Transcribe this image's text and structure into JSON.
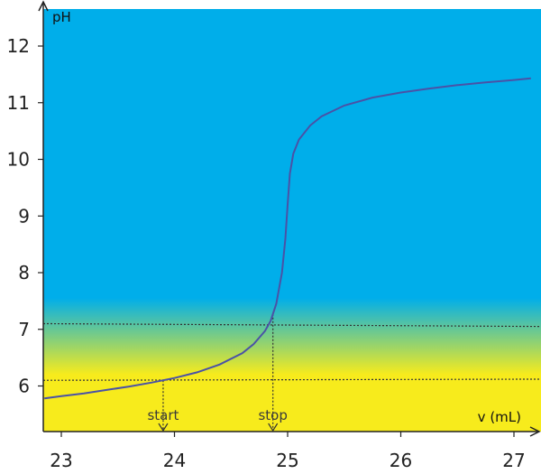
{
  "chart_data": {
    "type": "line",
    "xlabel": "v (mL)",
    "ylabel": "pH",
    "xlim": [
      22.85,
      27.25
    ],
    "ylim": [
      5.2,
      13.0
    ],
    "xticks": [
      23,
      24,
      25,
      26,
      27
    ],
    "yticks": [
      6,
      7,
      8,
      9,
      10,
      11,
      12
    ],
    "grid": false,
    "series": [
      {
        "x": [
          22.85,
          23.0,
          23.2,
          23.4,
          23.6,
          23.8,
          24.0,
          24.2,
          24.4,
          24.6,
          24.7,
          24.8,
          24.85,
          24.9,
          24.95,
          24.98,
          25.0,
          25.02,
          25.05,
          25.1,
          25.2,
          25.3,
          25.5,
          25.75,
          26.0,
          26.25,
          26.5,
          26.75,
          27.0,
          27.15
        ],
        "y": [
          5.78,
          5.82,
          5.87,
          5.93,
          5.99,
          6.06,
          6.14,
          6.24,
          6.38,
          6.58,
          6.74,
          6.97,
          7.15,
          7.45,
          8.0,
          8.6,
          9.2,
          9.75,
          10.1,
          10.35,
          10.6,
          10.76,
          10.95,
          11.09,
          11.18,
          11.25,
          11.31,
          11.36,
          11.4,
          11.43
        ],
        "color": "#4a52a6"
      }
    ],
    "annotations": [
      {
        "text": "start",
        "x": 23.9
      },
      {
        "text": "stop",
        "x": 24.87
      }
    ],
    "reference_lines": [
      {
        "y_at_left": 7.1,
        "y_at_right": 7.05
      },
      {
        "y_at_left": 6.1,
        "y_at_right": 6.12
      }
    ],
    "background": {
      "top_color": "#00aeea",
      "bottom_color": "#f7eb1c",
      "transition_range_ph": [
        6.2,
        7.55
      ]
    }
  }
}
